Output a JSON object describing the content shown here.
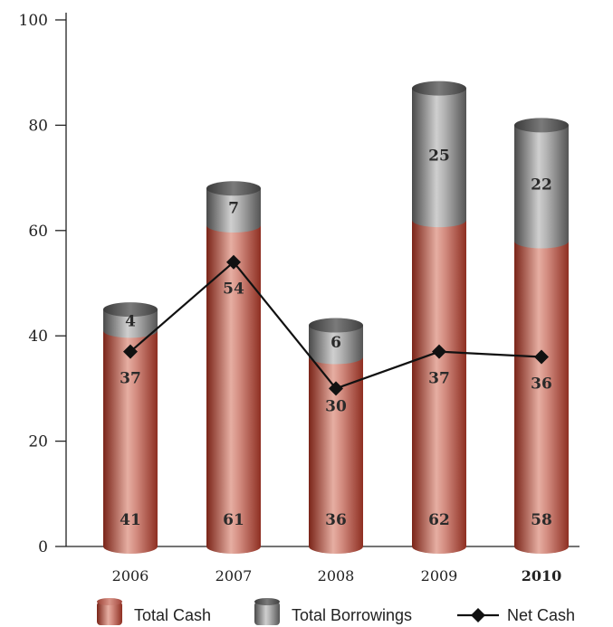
{
  "chart_data": {
    "type": "bar",
    "categories": [
      "2006",
      "2007",
      "2008",
      "2009",
      "2010"
    ],
    "bold_categories": [
      "2010"
    ],
    "ylim": [
      0,
      100
    ],
    "yticks": [
      0,
      20,
      40,
      60,
      80,
      100
    ],
    "series": [
      {
        "name": "Total Cash",
        "kind": "bar",
        "values": [
          41,
          61,
          36,
          62,
          58
        ],
        "color": "#b5463c"
      },
      {
        "name": "Total Borrowings",
        "kind": "bar",
        "stacked": true,
        "values": [
          4,
          7,
          6,
          25,
          22
        ],
        "color": "#8a8a8a"
      },
      {
        "name": "Net Cash",
        "kind": "line",
        "values": [
          37,
          54,
          30,
          37,
          36
        ],
        "color": "#111111",
        "marker": "diamond"
      }
    ],
    "legend_position": "bottom",
    "grid": false
  }
}
